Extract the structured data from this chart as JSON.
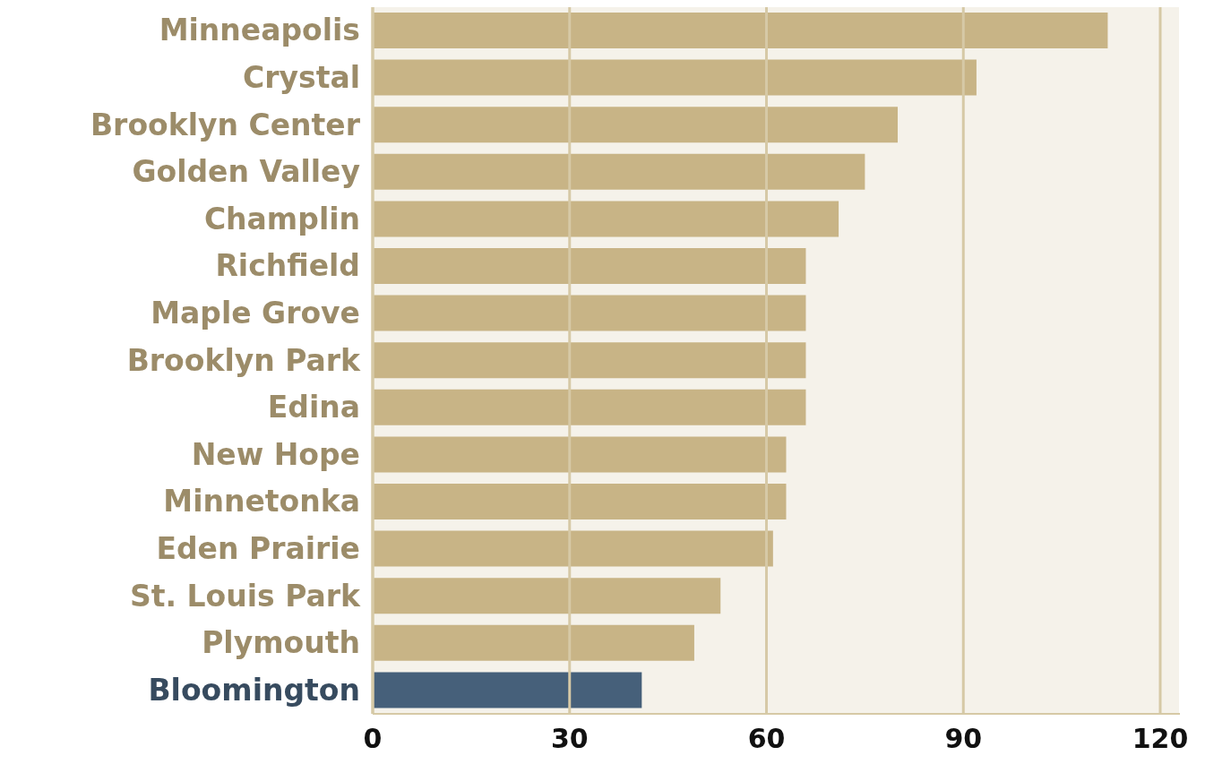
{
  "chart_data": {
    "type": "bar",
    "orientation": "horizontal",
    "categories": [
      "Minneapolis",
      "Crystal",
      "Brooklyn Center",
      "Golden Valley",
      "Champlin",
      "Richfield",
      "Maple Grove",
      "Brooklyn Park",
      "Edina",
      "New Hope",
      "Minnetonka",
      "Eden Prairie",
      "St. Louis Park",
      "Plymouth",
      "Bloomington"
    ],
    "values": [
      112,
      92,
      80,
      75,
      71,
      66,
      66,
      66,
      66,
      63,
      63,
      61,
      53,
      49,
      41
    ],
    "colors": [
      "#c8b486",
      "#c8b486",
      "#c8b486",
      "#c8b486",
      "#c8b486",
      "#c8b486",
      "#c8b486",
      "#c8b486",
      "#c8b486",
      "#c8b486",
      "#c8b486",
      "#c8b486",
      "#c8b486",
      "#c8b486",
      "#46607a"
    ],
    "xlim": [
      0,
      123
    ],
    "xticks": [
      0,
      30,
      60,
      90,
      120
    ],
    "grid": "x"
  }
}
